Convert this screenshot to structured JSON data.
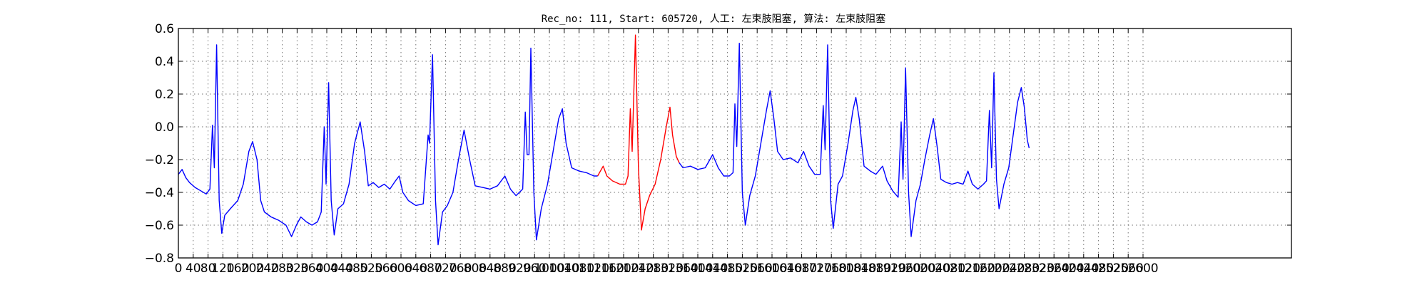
{
  "chart_data": {
    "type": "line",
    "title": "Rec_no: 111, Start: 605720, 人工: 左束肢阻塞, 算法: 左束肢阻塞",
    "xlabel": "",
    "ylabel": "",
    "xlim": [
      0,
      3000
    ],
    "ylim": [
      -0.8,
      0.6
    ],
    "grid": true,
    "yticks": [
      -0.8,
      -0.6,
      -0.4,
      -0.2,
      0.0,
      0.2,
      0.4,
      0.6
    ],
    "ytick_labels": [
      "−0.8",
      "−0.6",
      "−0.4",
      "−0.2",
      "0.0",
      "0.2",
      "0.4",
      "0.6"
    ],
    "xticks": [
      0,
      40,
      80,
      120,
      160,
      200,
      240,
      280,
      320,
      360,
      400,
      440,
      480,
      520,
      560,
      600,
      640,
      680,
      720,
      760,
      800,
      840,
      880,
      920,
      960,
      1000,
      1040,
      1080,
      1120,
      1160,
      1200,
      1240,
      1280,
      1320,
      1360,
      1400,
      1440,
      1480,
      1520,
      1560,
      1600,
      1640,
      1680,
      1720,
      1760,
      1800,
      1840,
      1880,
      1920,
      1960,
      2000,
      2040,
      2080,
      2120,
      2160,
      2200,
      2240,
      2280,
      2320,
      2360,
      2400,
      2440,
      2480,
      2520,
      2560,
      2600
    ],
    "xtick_labels": [
      "0",
      "40",
      "80",
      "120",
      "160",
      "200",
      "240",
      "280",
      "320",
      "360",
      "400",
      "440",
      "480",
      "520",
      "560",
      "600",
      "640",
      "680",
      "720",
      "760",
      "800",
      "840",
      "880",
      "920",
      "960",
      "1000",
      "1040",
      "1080",
      "1120",
      "1160",
      "1200",
      "1240",
      "1280",
      "1320",
      "1360",
      "1400",
      "1440",
      "1480",
      "1520",
      "1560",
      "1600",
      "1640",
      "1680",
      "1720",
      "1760",
      "1800",
      "1840",
      "1880",
      "1920",
      "1960",
      "2000",
      "2040",
      "2080",
      "2120",
      "2160",
      "2200",
      "2240",
      "2280",
      "2320",
      "2360",
      "2400",
      "2440",
      "2480",
      "2520",
      "2560",
      "2600"
    ],
    "series": [
      {
        "color": "#0000ff",
        "points": [
          [
            0,
            -0.29
          ],
          [
            10,
            -0.26
          ],
          [
            20,
            -0.31
          ],
          [
            30,
            -0.34
          ],
          [
            45,
            -0.37
          ],
          [
            60,
            -0.39
          ],
          [
            75,
            -0.41
          ],
          [
            85,
            -0.38
          ],
          [
            92,
            0.01
          ],
          [
            97,
            -0.25
          ],
          [
            103,
            0.5
          ],
          [
            110,
            -0.45
          ],
          [
            117,
            -0.65
          ],
          [
            125,
            -0.54
          ],
          [
            140,
            -0.5
          ],
          [
            160,
            -0.45
          ],
          [
            175,
            -0.35
          ],
          [
            190,
            -0.15
          ],
          [
            200,
            -0.09
          ],
          [
            212,
            -0.2
          ],
          [
            222,
            -0.45
          ],
          [
            232,
            -0.52
          ],
          [
            250,
            -0.55
          ],
          [
            270,
            -0.57
          ],
          [
            290,
            -0.6
          ],
          [
            305,
            -0.67
          ],
          [
            318,
            -0.6
          ],
          [
            330,
            -0.55
          ],
          [
            345,
            -0.58
          ],
          [
            360,
            -0.6
          ],
          [
            375,
            -0.58
          ],
          [
            385,
            -0.52
          ],
          [
            393,
            0.0
          ],
          [
            398,
            -0.35
          ],
          [
            405,
            0.27
          ],
          [
            412,
            -0.45
          ],
          [
            420,
            -0.66
          ],
          [
            430,
            -0.5
          ],
          [
            445,
            -0.47
          ],
          [
            460,
            -0.35
          ],
          [
            475,
            -0.1
          ],
          [
            490,
            0.03
          ],
          [
            502,
            -0.15
          ],
          [
            512,
            -0.36
          ],
          [
            525,
            -0.34
          ],
          [
            540,
            -0.37
          ],
          [
            555,
            -0.35
          ],
          [
            570,
            -0.38
          ],
          [
            585,
            -0.33
          ],
          [
            595,
            -0.3
          ],
          [
            605,
            -0.4
          ],
          [
            620,
            -0.45
          ],
          [
            640,
            -0.48
          ],
          [
            660,
            -0.47
          ],
          [
            673,
            -0.05
          ],
          [
            677,
            -0.1
          ],
          [
            685,
            0.44
          ],
          [
            693,
            -0.45
          ],
          [
            700,
            -0.72
          ],
          [
            712,
            -0.52
          ],
          [
            725,
            -0.48
          ],
          [
            740,
            -0.4
          ],
          [
            755,
            -0.2
          ],
          [
            770,
            -0.02
          ],
          [
            785,
            -0.2
          ],
          [
            800,
            -0.36
          ],
          [
            820,
            -0.37
          ],
          [
            840,
            -0.38
          ],
          [
            860,
            -0.36
          ],
          [
            880,
            -0.3
          ],
          [
            895,
            -0.38
          ],
          [
            910,
            -0.42
          ],
          [
            928,
            -0.38
          ],
          [
            935,
            0.09
          ],
          [
            940,
            -0.17
          ],
          [
            945,
            -0.17
          ],
          [
            950,
            0.48
          ],
          [
            958,
            -0.4
          ],
          [
            965,
            -0.69
          ],
          [
            978,
            -0.5
          ],
          [
            995,
            -0.35
          ],
          [
            1010,
            -0.15
          ],
          [
            1025,
            0.05
          ],
          [
            1035,
            0.11
          ],
          [
            1045,
            -0.1
          ],
          [
            1060,
            -0.25
          ],
          [
            1080,
            -0.27
          ],
          [
            1100,
            -0.28
          ],
          [
            1120,
            -0.3
          ],
          [
            1130,
            -0.3
          ]
        ]
      },
      {
        "color": "#ff0000",
        "points": [
          [
            1130,
            -0.3
          ],
          [
            1145,
            -0.24
          ],
          [
            1155,
            -0.3
          ],
          [
            1170,
            -0.33
          ],
          [
            1190,
            -0.35
          ],
          [
            1205,
            -0.35
          ],
          [
            1212,
            -0.3
          ],
          [
            1218,
            0.11
          ],
          [
            1223,
            -0.15
          ],
          [
            1232,
            0.56
          ],
          [
            1240,
            -0.25
          ],
          [
            1248,
            -0.63
          ],
          [
            1258,
            -0.5
          ],
          [
            1270,
            -0.42
          ],
          [
            1285,
            -0.35
          ],
          [
            1300,
            -0.2
          ],
          [
            1315,
            0.0
          ],
          [
            1325,
            0.12
          ],
          [
            1332,
            -0.05
          ],
          [
            1342,
            -0.18
          ],
          [
            1350,
            -0.22
          ]
        ]
      },
      {
        "color": "#0000ff",
        "points": [
          [
            1350,
            -0.22
          ],
          [
            1360,
            -0.25
          ],
          [
            1380,
            -0.24
          ],
          [
            1400,
            -0.26
          ],
          [
            1420,
            -0.25
          ],
          [
            1440,
            -0.17
          ],
          [
            1455,
            -0.25
          ],
          [
            1470,
            -0.3
          ],
          [
            1485,
            -0.3
          ],
          [
            1495,
            -0.28
          ],
          [
            1500,
            0.14
          ],
          [
            1505,
            -0.12
          ],
          [
            1512,
            0.51
          ],
          [
            1520,
            -0.4
          ],
          [
            1528,
            -0.6
          ],
          [
            1540,
            -0.42
          ],
          [
            1555,
            -0.3
          ],
          [
            1570,
            -0.1
          ],
          [
            1585,
            0.1
          ],
          [
            1595,
            0.22
          ],
          [
            1605,
            0.05
          ],
          [
            1615,
            -0.15
          ],
          [
            1630,
            -0.2
          ],
          [
            1650,
            -0.19
          ],
          [
            1670,
            -0.22
          ],
          [
            1685,
            -0.15
          ],
          [
            1700,
            -0.24
          ],
          [
            1715,
            -0.29
          ],
          [
            1730,
            -0.29
          ],
          [
            1738,
            0.13
          ],
          [
            1743,
            -0.14
          ],
          [
            1750,
            0.5
          ],
          [
            1758,
            -0.45
          ],
          [
            1765,
            -0.62
          ],
          [
            1778,
            -0.35
          ],
          [
            1790,
            -0.3
          ],
          [
            1805,
            -0.1
          ],
          [
            1818,
            0.1
          ],
          [
            1826,
            0.18
          ],
          [
            1835,
            0.05
          ],
          [
            1848,
            -0.24
          ],
          [
            1865,
            -0.27
          ],
          [
            1880,
            -0.29
          ],
          [
            1898,
            -0.24
          ],
          [
            1910,
            -0.33
          ],
          [
            1925,
            -0.39
          ],
          [
            1940,
            -0.43
          ],
          [
            1948,
            0.03
          ],
          [
            1953,
            -0.32
          ],
          [
            1960,
            0.36
          ],
          [
            1968,
            -0.4
          ],
          [
            1975,
            -0.67
          ],
          [
            1988,
            -0.45
          ],
          [
            2000,
            -0.35
          ],
          [
            2012,
            -0.2
          ],
          [
            2025,
            -0.05
          ],
          [
            2035,
            0.05
          ],
          [
            2045,
            -0.12
          ],
          [
            2055,
            -0.32
          ],
          [
            2070,
            -0.34
          ],
          [
            2085,
            -0.35
          ],
          [
            2100,
            -0.34
          ],
          [
            2115,
            -0.35
          ],
          [
            2128,
            -0.27
          ],
          [
            2140,
            -0.35
          ],
          [
            2155,
            -0.38
          ],
          [
            2170,
            -0.35
          ],
          [
            2178,
            -0.33
          ],
          [
            2186,
            0.1
          ],
          [
            2192,
            -0.25
          ],
          [
            2198,
            0.33
          ],
          [
            2205,
            -0.32
          ],
          [
            2212,
            -0.5
          ],
          [
            2225,
            -0.35
          ],
          [
            2238,
            -0.25
          ],
          [
            2250,
            -0.05
          ],
          [
            2262,
            0.15
          ],
          [
            2272,
            0.24
          ],
          [
            2280,
            0.12
          ],
          [
            2288,
            -0.08
          ],
          [
            2293,
            -0.13
          ]
        ]
      }
    ]
  }
}
